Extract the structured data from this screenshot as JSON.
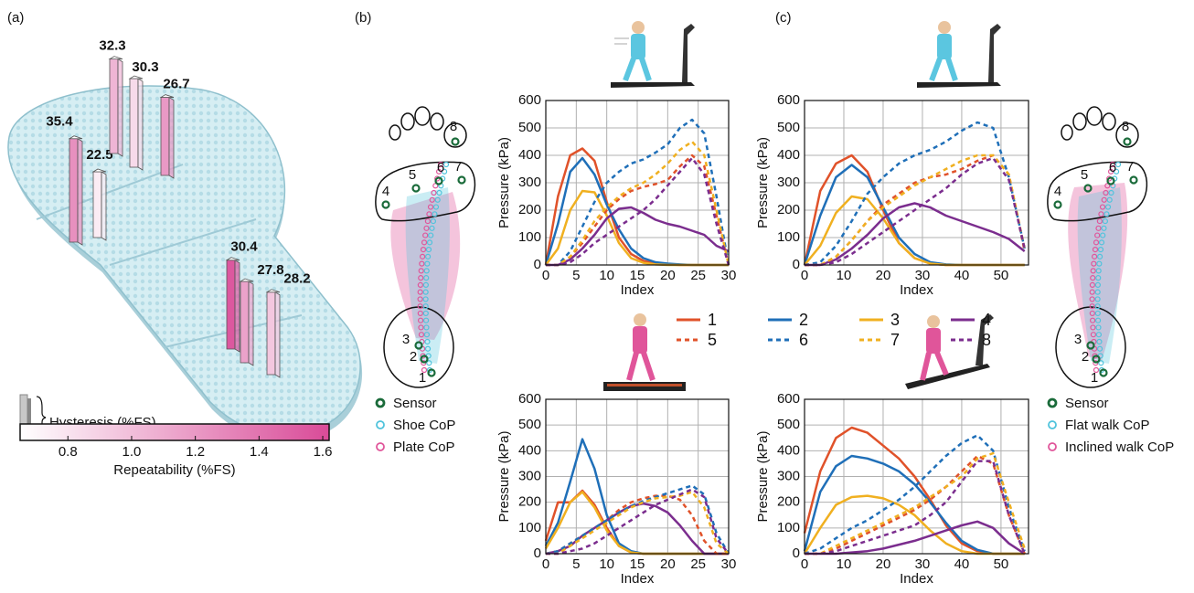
{
  "panel_labels": [
    "(a)",
    "(b)",
    "(c)"
  ],
  "insole": {
    "hysteresis": [
      35.4,
      22.5,
      32.3,
      30.3,
      26.7,
      30.4,
      27.8,
      28.2
    ],
    "repeatability": [
      1.25,
      0.75,
      1.05,
      0.85,
      1.2,
      1.55,
      1.15,
      0.95
    ],
    "hysteresis_legend": "Hysteresis (%FS)",
    "colorbar": {
      "label": "Repeatability (%FS)",
      "lim": [
        0.65,
        1.62
      ],
      "ticks": [
        0.8,
        {
          "value": 1,
          "label": "1.0"
        },
        1.2,
        1.4,
        1.6
      ],
      "colors": [
        "#ffffff",
        "#d94b98"
      ]
    }
  },
  "foot_b": {
    "sensor_labels": [
      "1",
      "2",
      "3",
      "4",
      "5",
      "6",
      "7",
      "8"
    ],
    "legend": [
      {
        "label": "Sensor",
        "color": "#1a6b3a"
      },
      {
        "label": "Shoe CoP",
        "color": "#4fc3dc"
      },
      {
        "label": "Plate CoP",
        "color": "#e0559a"
      }
    ]
  },
  "foot_c": {
    "sensor_labels": [
      "1",
      "2",
      "3",
      "4",
      "5",
      "6",
      "7",
      "8"
    ],
    "legend": [
      {
        "label": "Sensor",
        "color": "#1a6b3a"
      },
      {
        "label": "Flat walk CoP",
        "color": "#4fc3dc"
      },
      {
        "label": "Inclined walk CoP",
        "color": "#e0559a"
      }
    ]
  },
  "chart_data": [
    {
      "type": "line",
      "x_label": "Index",
      "y_label": "Pressure (kPa)",
      "grid": true,
      "x": [
        0,
        2,
        4,
        6,
        8,
        10,
        12,
        14,
        16,
        18,
        20,
        22,
        24,
        26,
        28,
        30
      ],
      "xlim": [
        0,
        30
      ],
      "xticks": [
        0,
        5,
        10,
        15,
        20,
        25,
        30
      ],
      "ylim": [
        0,
        600
      ],
      "yticks": [
        0,
        100,
        200,
        300,
        400,
        500,
        600
      ],
      "series": [
        {
          "name": "1",
          "color": "#e0522a",
          "dash": false,
          "values": [
            0,
            250,
            400,
            425,
            380,
            230,
            100,
            40,
            15,
            5,
            2,
            0,
            0,
            0,
            0,
            0
          ]
        },
        {
          "name": "2",
          "color": "#1f6fb8",
          "dash": false,
          "values": [
            0,
            150,
            340,
            390,
            330,
            220,
            130,
            60,
            25,
            10,
            5,
            2,
            0,
            0,
            0,
            0
          ]
        },
        {
          "name": "3",
          "color": "#f0b020",
          "dash": false,
          "values": [
            0,
            60,
            200,
            270,
            265,
            180,
            80,
            25,
            8,
            2,
            0,
            0,
            0,
            0,
            0,
            0
          ]
        },
        {
          "name": "4",
          "color": "#7b2d8e",
          "dash": false,
          "values": [
            0,
            0,
            20,
            60,
            110,
            170,
            205,
            210,
            190,
            165,
            150,
            140,
            125,
            110,
            70,
            50
          ]
        },
        {
          "name": "5",
          "color": "#e0522a",
          "dash": true,
          "values": [
            0,
            0,
            30,
            80,
            140,
            200,
            240,
            270,
            285,
            295,
            310,
            360,
            400,
            360,
            180,
            0
          ]
        },
        {
          "name": "6",
          "color": "#1f6fb8",
          "dash": true,
          "values": [
            0,
            0,
            50,
            140,
            230,
            300,
            340,
            370,
            385,
            410,
            440,
            500,
            530,
            480,
            250,
            0
          ]
        },
        {
          "name": "7",
          "color": "#f0b020",
          "dash": true,
          "values": [
            0,
            0,
            30,
            90,
            160,
            210,
            250,
            280,
            300,
            330,
            370,
            420,
            450,
            400,
            200,
            0
          ]
        },
        {
          "name": "8",
          "color": "#7b2d8e",
          "dash": true,
          "values": [
            0,
            0,
            10,
            40,
            80,
            110,
            140,
            170,
            200,
            240,
            290,
            340,
            390,
            330,
            150,
            0
          ]
        }
      ]
    },
    {
      "type": "line",
      "x_label": "Index",
      "y_label": "Pressure (kPa)",
      "grid": true,
      "x": [
        0,
        4,
        8,
        12,
        16,
        20,
        24,
        28,
        32,
        36,
        40,
        44,
        48,
        52,
        56
      ],
      "xlim": [
        0,
        57
      ],
      "xticks": [
        0,
        10,
        20,
        30,
        40,
        50
      ],
      "ylim": [
        0,
        600
      ],
      "yticks": [
        0,
        100,
        200,
        300,
        400,
        500,
        600
      ],
      "series": [
        {
          "color": "#e0522a",
          "dash": false,
          "values": [
            0,
            270,
            370,
            400,
            340,
            200,
            80,
            25,
            5,
            0,
            0,
            0,
            0,
            0,
            0
          ]
        },
        {
          "color": "#1f6fb8",
          "dash": false,
          "values": [
            0,
            180,
            320,
            365,
            320,
            210,
            100,
            40,
            10,
            2,
            0,
            0,
            0,
            0,
            0
          ]
        },
        {
          "color": "#f0b020",
          "dash": false,
          "values": [
            0,
            70,
            190,
            250,
            240,
            170,
            80,
            25,
            5,
            0,
            0,
            0,
            0,
            0,
            0
          ]
        },
        {
          "color": "#7b2d8e",
          "dash": false,
          "values": [
            0,
            0,
            20,
            60,
            110,
            170,
            210,
            225,
            210,
            180,
            160,
            140,
            120,
            95,
            50
          ]
        },
        {
          "color": "#e0522a",
          "dash": true,
          "values": [
            0,
            0,
            30,
            90,
            160,
            220,
            260,
            300,
            320,
            330,
            350,
            380,
            400,
            330,
            50
          ]
        },
        {
          "color": "#1f6fb8",
          "dash": true,
          "values": [
            0,
            10,
            70,
            160,
            260,
            320,
            370,
            400,
            420,
            450,
            490,
            520,
            500,
            320,
            60
          ]
        },
        {
          "color": "#f0b020",
          "dash": true,
          "values": [
            0,
            0,
            30,
            90,
            160,
            210,
            250,
            290,
            320,
            350,
            380,
            400,
            400,
            330,
            60
          ]
        },
        {
          "color": "#7b2d8e",
          "dash": true,
          "values": [
            0,
            0,
            10,
            40,
            80,
            120,
            160,
            200,
            240,
            280,
            330,
            370,
            390,
            310,
            60
          ]
        }
      ]
    },
    {
      "type": "line",
      "x_label": "Index",
      "y_label": "Pressure (kPa)",
      "grid": true,
      "x": [
        0,
        2,
        4,
        6,
        8,
        10,
        12,
        14,
        16,
        18,
        20,
        22,
        24,
        26,
        28,
        30
      ],
      "xlim": [
        0,
        30
      ],
      "xticks": [
        0,
        5,
        10,
        15,
        20,
        25,
        30
      ],
      "ylim": [
        0,
        600
      ],
      "yticks": [
        0,
        100,
        200,
        300,
        400,
        500,
        600
      ],
      "series": [
        {
          "color": "#e0522a",
          "dash": false,
          "values": [
            50,
            200,
            200,
            245,
            190,
            100,
            30,
            5,
            0,
            0,
            0,
            0,
            0,
            0,
            0,
            0
          ]
        },
        {
          "color": "#1f6fb8",
          "dash": false,
          "values": [
            30,
            120,
            280,
            445,
            330,
            150,
            40,
            10,
            0,
            0,
            0,
            0,
            0,
            0,
            0,
            0
          ]
        },
        {
          "color": "#f0b020",
          "dash": false,
          "values": [
            20,
            100,
            200,
            240,
            180,
            90,
            30,
            5,
            0,
            0,
            0,
            0,
            0,
            0,
            0,
            0
          ]
        },
        {
          "color": "#7b2d8e",
          "dash": false,
          "values": [
            0,
            10,
            30,
            70,
            100,
            130,
            160,
            185,
            195,
            185,
            160,
            110,
            50,
            0,
            0,
            0
          ]
        },
        {
          "color": "#e0522a",
          "dash": true,
          "values": [
            0,
            10,
            40,
            70,
            100,
            130,
            170,
            200,
            215,
            225,
            225,
            210,
            150,
            50,
            0,
            0
          ]
        },
        {
          "color": "#1f6fb8",
          "dash": true,
          "values": [
            0,
            10,
            40,
            70,
            100,
            130,
            160,
            185,
            205,
            220,
            235,
            250,
            265,
            230,
            80,
            0
          ]
        },
        {
          "color": "#f0b020",
          "dash": true,
          "values": [
            0,
            0,
            30,
            60,
            90,
            120,
            150,
            180,
            200,
            215,
            220,
            225,
            240,
            180,
            40,
            0
          ]
        },
        {
          "color": "#7b2d8e",
          "dash": true,
          "values": [
            0,
            0,
            10,
            20,
            40,
            70,
            100,
            130,
            160,
            190,
            210,
            230,
            250,
            220,
            60,
            0
          ]
        }
      ]
    },
    {
      "type": "line",
      "x_label": "Index",
      "y_label": "Pressure (kPa)",
      "grid": true,
      "x": [
        0,
        4,
        8,
        12,
        16,
        20,
        24,
        28,
        32,
        36,
        40,
        44,
        48,
        52,
        56
      ],
      "xlim": [
        0,
        57
      ],
      "xticks": [
        0,
        10,
        20,
        30,
        40,
        50
      ],
      "ylim": [
        0,
        600
      ],
      "yticks": [
        0,
        100,
        200,
        300,
        400,
        500,
        600
      ],
      "series": [
        {
          "color": "#e0522a",
          "dash": false,
          "values": [
            80,
            320,
            450,
            490,
            470,
            420,
            370,
            300,
            210,
            110,
            40,
            10,
            0,
            0,
            0
          ]
        },
        {
          "color": "#1f6fb8",
          "dash": false,
          "values": [
            10,
            240,
            340,
            380,
            370,
            350,
            320,
            270,
            200,
            120,
            50,
            15,
            0,
            0,
            0
          ]
        },
        {
          "color": "#f0b020",
          "dash": false,
          "values": [
            0,
            100,
            190,
            220,
            225,
            215,
            190,
            150,
            90,
            40,
            10,
            0,
            0,
            0,
            0
          ]
        },
        {
          "color": "#7b2d8e",
          "dash": false,
          "values": [
            0,
            0,
            0,
            5,
            10,
            20,
            35,
            50,
            70,
            90,
            110,
            125,
            100,
            40,
            0
          ]
        },
        {
          "color": "#e0522a",
          "dash": true,
          "values": [
            0,
            0,
            20,
            50,
            80,
            110,
            140,
            170,
            210,
            260,
            320,
            380,
            350,
            150,
            0
          ]
        },
        {
          "color": "#1f6fb8",
          "dash": true,
          "values": [
            0,
            20,
            60,
            100,
            130,
            170,
            210,
            260,
            320,
            380,
            430,
            460,
            400,
            180,
            10
          ]
        },
        {
          "color": "#f0b020",
          "dash": true,
          "values": [
            0,
            0,
            30,
            60,
            90,
            120,
            150,
            180,
            220,
            260,
            300,
            370,
            390,
            200,
            20
          ]
        },
        {
          "color": "#7b2d8e",
          "dash": true,
          "values": [
            0,
            0,
            10,
            30,
            50,
            70,
            90,
            110,
            150,
            200,
            280,
            360,
            360,
            150,
            0
          ]
        }
      ]
    }
  ]
}
